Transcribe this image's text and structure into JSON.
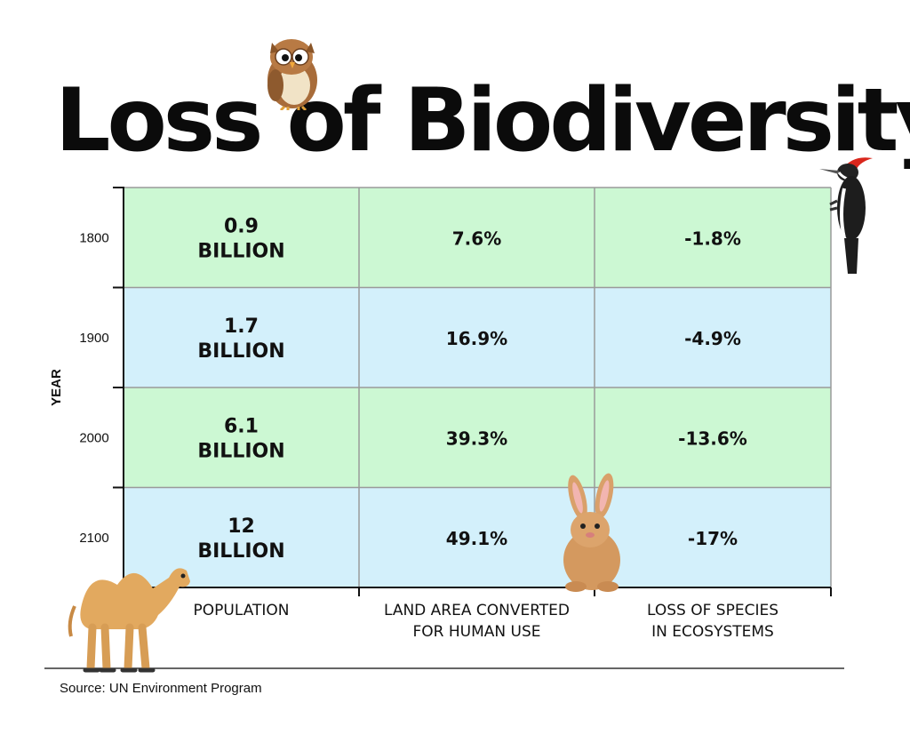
{
  "title": "Loss of Biodiversity",
  "source": "Source: UN Environment Program",
  "colors": {
    "green_row": "#ccf8d3",
    "blue_row": "#d3f0fb",
    "grid": "#9a9a9a",
    "text": "#111111"
  },
  "chart_data": {
    "type": "table",
    "title": "Loss of Biodiversity",
    "ylabel": "YEAR",
    "rows": [
      "1800",
      "1900",
      "2000",
      "2100"
    ],
    "columns": [
      [
        "POPULATION"
      ],
      [
        "LAND AREA CONVERTED",
        "FOR HUMAN USE"
      ],
      [
        "LOSS OF SPECIES",
        "IN ECOSYSTEMS"
      ]
    ],
    "cells": [
      [
        [
          "0.9",
          "BILLION"
        ],
        [
          "7.6%"
        ],
        [
          "-1.8%"
        ]
      ],
      [
        [
          "1.7",
          "BILLION"
        ],
        [
          "16.9%"
        ],
        [
          "-4.9%"
        ]
      ],
      [
        [
          "6.1",
          "BILLION"
        ],
        [
          "39.3%"
        ],
        [
          "-13.6%"
        ]
      ],
      [
        [
          "12",
          "BILLION"
        ],
        [
          "49.1%"
        ],
        [
          "-17%"
        ]
      ]
    ],
    "values": {
      "population_billion": [
        0.9,
        1.7,
        6.1,
        12
      ],
      "land_area_converted_percent": [
        7.6,
        16.9,
        39.3,
        49.1
      ],
      "loss_of_species_percent": [
        -1.8,
        -4.9,
        -13.6,
        -17
      ]
    },
    "row_colors": [
      "green",
      "blue",
      "green",
      "blue"
    ]
  },
  "illustrations": [
    "owl-icon",
    "woodpecker-icon",
    "rabbit-icon",
    "camel-icon"
  ]
}
